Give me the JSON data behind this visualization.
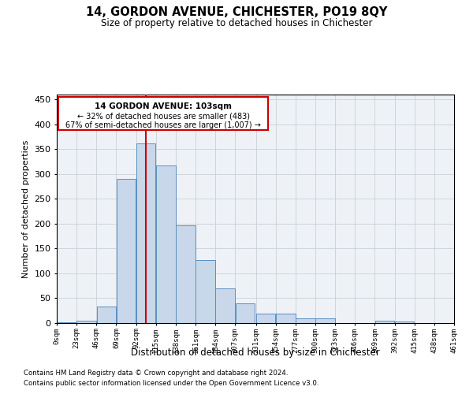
{
  "title": "14, GORDON AVENUE, CHICHESTER, PO19 8QY",
  "subtitle": "Size of property relative to detached houses in Chichester",
  "xlabel": "Distribution of detached houses by size in Chichester",
  "ylabel": "Number of detached properties",
  "footnote1": "Contains HM Land Registry data © Crown copyright and database right 2024.",
  "footnote2": "Contains public sector information licensed under the Open Government Licence v3.0.",
  "bar_color": "#c8d8ea",
  "bar_edge_color": "#5a8fc0",
  "grid_color": "#c8d0d8",
  "bg_color": "#eef2f6",
  "annotation_box_color": "#cc0000",
  "vline_color": "#cc0000",
  "annotation_title": "14 GORDON AVENUE: 103sqm",
  "annotation_line2": "← 32% of detached houses are smaller (483)",
  "annotation_line3": "67% of semi-detached houses are larger (1,007) →",
  "property_size": 103,
  "bins": [
    0,
    23,
    46,
    69,
    92,
    115,
    138,
    161,
    184,
    207,
    231,
    254,
    277,
    300,
    323,
    346,
    369,
    392,
    415,
    438,
    461
  ],
  "counts": [
    2,
    5,
    33,
    290,
    362,
    317,
    196,
    127,
    70,
    40,
    19,
    19,
    10,
    10,
    0,
    0,
    5,
    3,
    0,
    0
  ],
  "xlim": [
    0,
    461
  ],
  "ylim": [
    0,
    460
  ],
  "yticks": [
    0,
    50,
    100,
    150,
    200,
    250,
    300,
    350,
    400,
    450
  ],
  "xtick_labels": [
    "0sqm",
    "23sqm",
    "46sqm",
    "69sqm",
    "92sqm",
    "115sqm",
    "138sqm",
    "161sqm",
    "184sqm",
    "207sqm",
    "231sqm",
    "254sqm",
    "277sqm",
    "300sqm",
    "323sqm",
    "346sqm",
    "369sqm",
    "392sqm",
    "415sqm",
    "438sqm",
    "461sqm"
  ]
}
